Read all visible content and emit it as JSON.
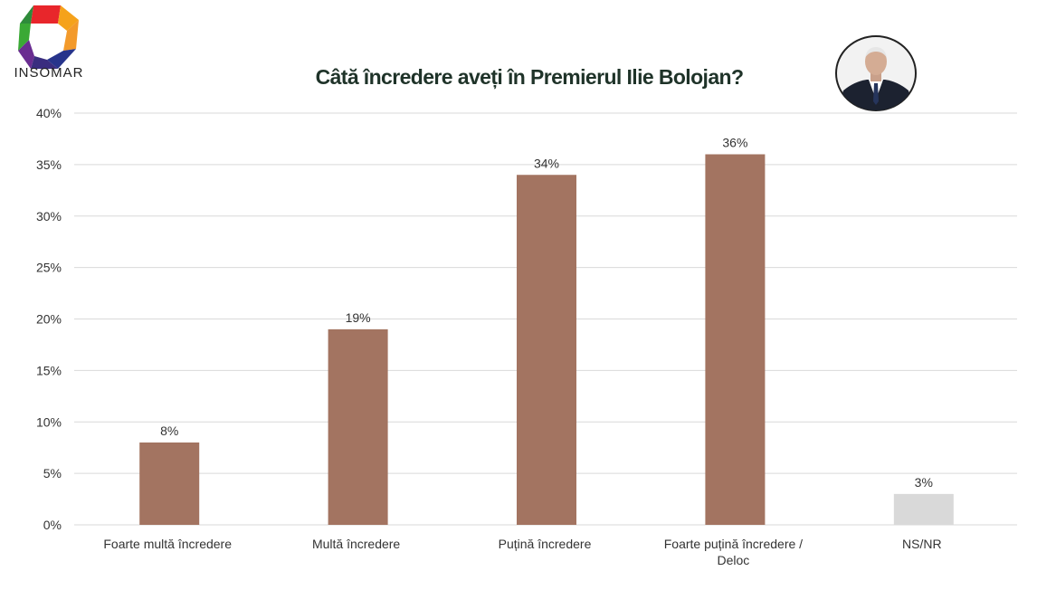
{
  "header": {
    "brand": "INSOMAR",
    "title": "Câtă încredere aveți în Premierul Ilie Bolojan?"
  },
  "colors": {
    "bar": "#a37461",
    "bar_na": "#d9d9d9",
    "grid": "#d9d9d9"
  },
  "chart_data": {
    "type": "bar",
    "title": "Câtă încredere aveți în Premierul Ilie Bolojan?",
    "xlabel": "",
    "ylabel": "",
    "ylim": [
      0,
      40
    ],
    "yticks": [
      "0%",
      "5%",
      "10%",
      "15%",
      "20%",
      "25%",
      "30%",
      "35%",
      "40%"
    ],
    "grid": true,
    "legend": "none",
    "categories": [
      [
        "Foarte multă încredere"
      ],
      [
        "Multă încredere"
      ],
      [
        "Puțină încredere"
      ],
      [
        "Foarte puțină încredere /",
        "Deloc"
      ],
      [
        "NS/NR"
      ]
    ],
    "values": [
      8,
      19,
      34,
      36,
      3
    ],
    "labels": [
      "8%",
      "19%",
      "34%",
      "36%",
      "3%"
    ]
  }
}
